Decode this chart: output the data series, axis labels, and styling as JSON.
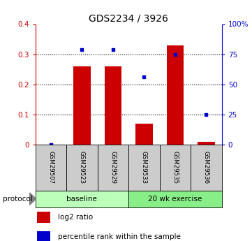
{
  "title": "GDS2234 / 3926",
  "samples": [
    "GSM29507",
    "GSM29523",
    "GSM29529",
    "GSM29533",
    "GSM29535",
    "GSM29536"
  ],
  "log2_ratio": [
    0.0,
    0.26,
    0.26,
    0.07,
    0.33,
    0.01
  ],
  "percentile_rank": [
    0.0,
    79.0,
    79.0,
    56.0,
    75.0,
    25.0
  ],
  "bar_color": "#cc0000",
  "dot_color": "#0000cc",
  "left_ylim": [
    0,
    0.4
  ],
  "right_ylim": [
    0,
    100
  ],
  "left_yticks": [
    0,
    0.1,
    0.2,
    0.3,
    0.4
  ],
  "left_yticklabels": [
    "0",
    "0.1",
    "0.2",
    "0.3",
    "0.4"
  ],
  "right_yticks": [
    0,
    25,
    50,
    75,
    100
  ],
  "right_yticklabels": [
    "0",
    "25",
    "50",
    "75",
    "100%"
  ],
  "left_ycolor": "#cc0000",
  "right_ycolor": "#0000cc",
  "gridlines": [
    0.1,
    0.2,
    0.3
  ],
  "groups": [
    {
      "label": "baseline",
      "start": 0,
      "end": 3,
      "color": "#bbffbb"
    },
    {
      "label": "20 wk exercise",
      "start": 3,
      "end": 6,
      "color": "#88ee88"
    }
  ],
  "protocol_label": "protocol",
  "legend_bar_label": "log2 ratio",
  "legend_dot_label": "percentile rank within the sample",
  "sample_bg_color": "#cccccc",
  "bar_width": 0.55
}
